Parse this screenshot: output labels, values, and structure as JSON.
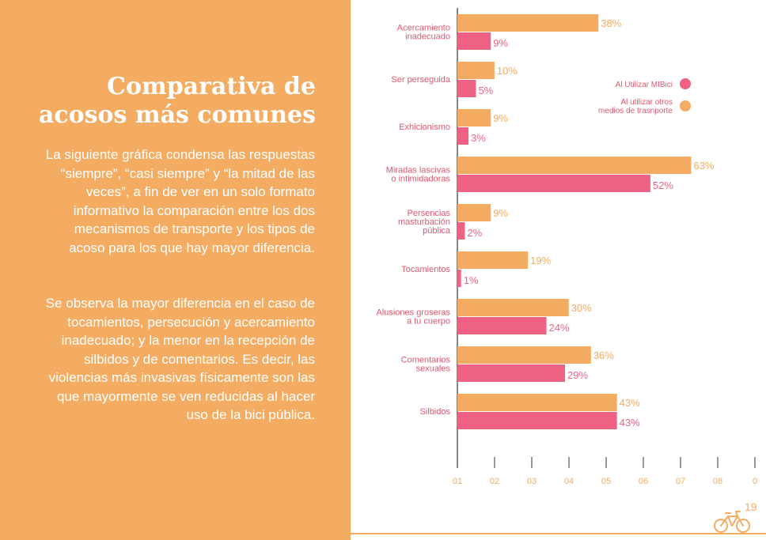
{
  "text": {
    "title_line1": "Comparativa de",
    "title_line2": "acosos más comunes",
    "paragraph1": "La siguiente gráfica condensa las respuestas “siempre”, “casi siempre” y “la mitad de las veces”, a fin de ver en un solo formato informativo la comparación entre los dos mecanismos de transporte y los tipos de acoso para los que hay mayor diferencia.",
    "paragraph2": "Se observa la mayor diferencia en el caso de tocamientos, persecución y acercamiento inadecuado; y la menor en la recepción de silbidos y de comentarios. Es decir, las violencias más invasivas físicamente son las que mayormente se ven reducidas al hacer uso de la bici pública.",
    "page_number": "19"
  },
  "colors": {
    "panel": "#f4ac62",
    "series_otros": "#f4ac62",
    "series_mibici": "#ee6384",
    "category_text": "#e0576f",
    "axis_text": "#f4ac62"
  },
  "chart_data": {
    "type": "bar",
    "orientation": "horizontal",
    "categories": [
      [
        "Acercamiento",
        "inadecuado"
      ],
      [
        "Ser perseguida"
      ],
      [
        "Exhicionismo"
      ],
      [
        "Miradas lascivas",
        "o intimidadoras"
      ],
      [
        "Persencias",
        "masturbación",
        "pública"
      ],
      [
        "Tocamientos"
      ],
      [
        "Alusiones groseras",
        "a tu cuerpo"
      ],
      [
        "Comentarios",
        "sexuales"
      ],
      [
        "Silbidos"
      ]
    ],
    "series": [
      {
        "name": "Al utilizar otros medios de trasnporte",
        "legend_lines": [
          "Al utilizar otros",
          "medios de trasnporte"
        ],
        "color": "#f4ac62",
        "values": [
          38,
          10,
          9,
          63,
          9,
          19,
          30,
          36,
          43
        ]
      },
      {
        "name": "Al Utilizar MIBici",
        "legend_lines": [
          "Al Utilizar MIBici"
        ],
        "color": "#ee6384",
        "values": [
          9,
          5,
          3,
          52,
          2,
          1,
          24,
          29,
          43
        ]
      }
    ],
    "value_suffix": "%",
    "x_ticks": [
      "01",
      "02",
      "03",
      "04",
      "05",
      "06",
      "07",
      "08",
      "0"
    ],
    "xlim": [
      0,
      80
    ],
    "legend": "top-right"
  }
}
